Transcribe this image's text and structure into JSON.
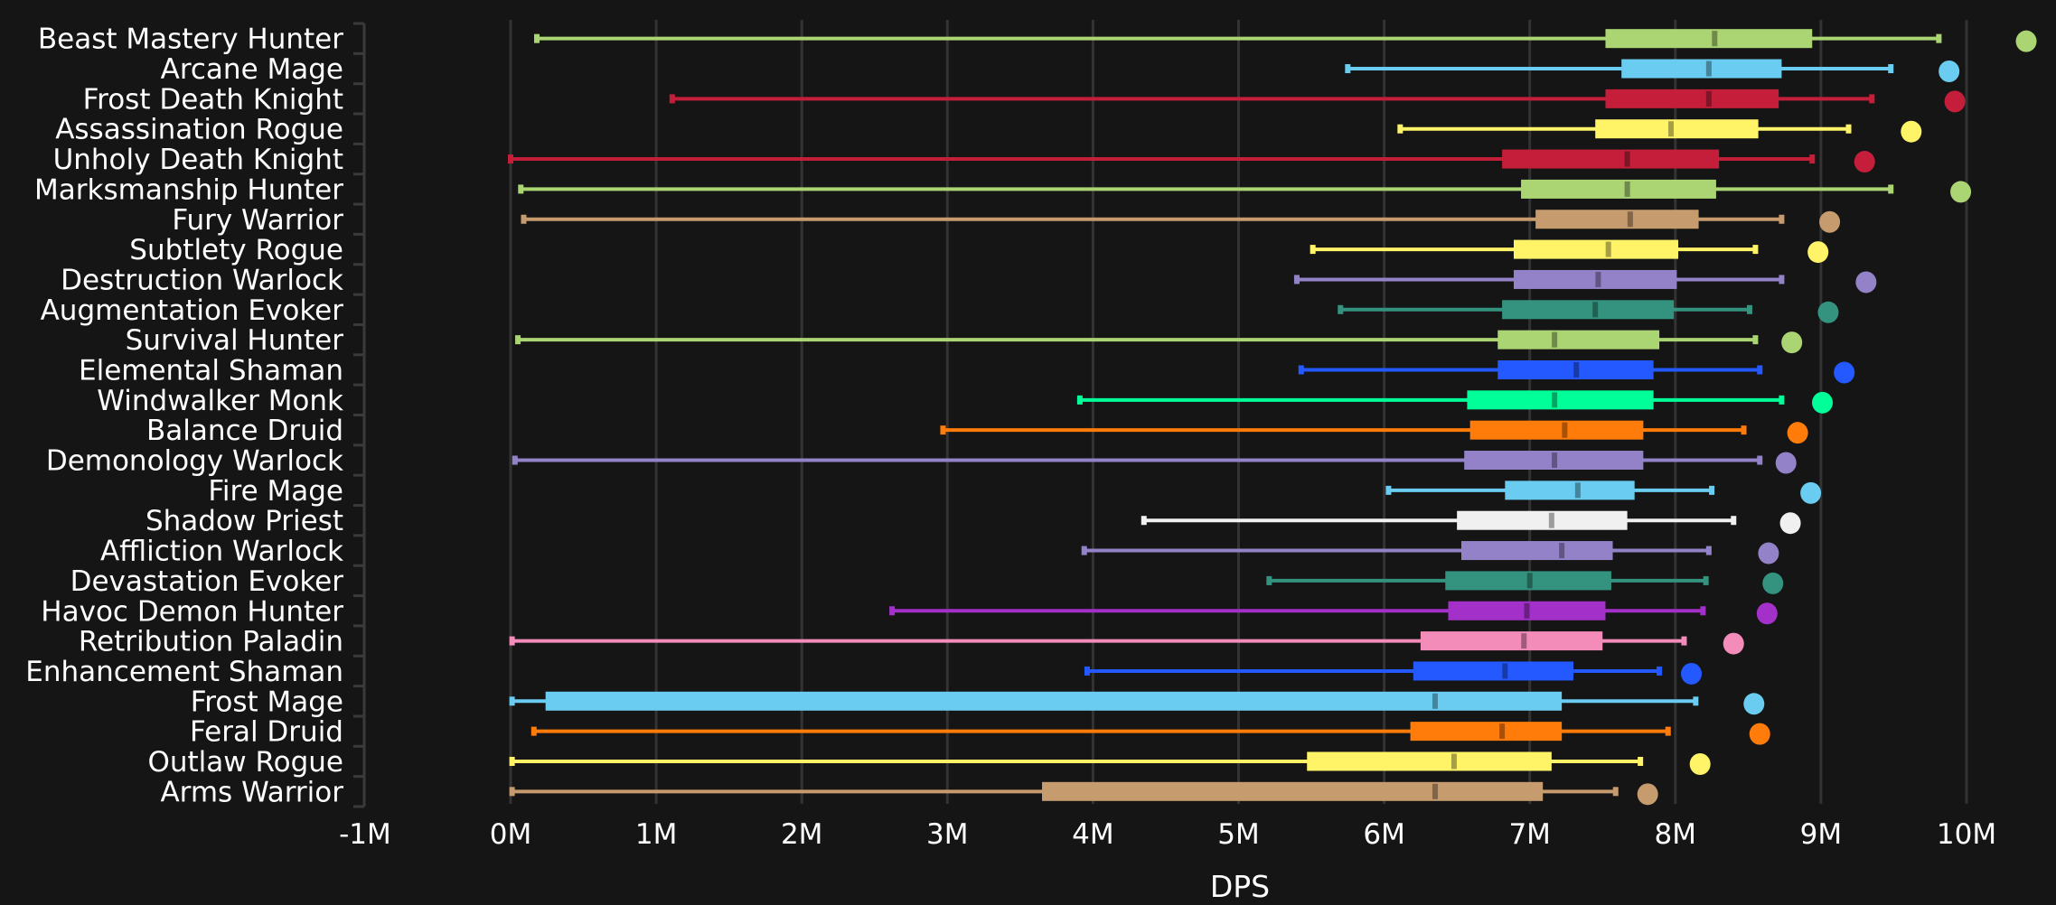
{
  "chart_data": {
    "type": "boxplot",
    "orientation": "horizontal",
    "title": "",
    "xlabel": "DPS",
    "ylabel": "",
    "xlim": [
      -1,
      10.5
    ],
    "x_unit": "M",
    "x_ticks": [
      -1,
      0,
      1,
      2,
      3,
      4,
      5,
      6,
      7,
      8,
      9,
      10
    ],
    "x_tick_labels": [
      "-1M",
      "0M",
      "1M",
      "2M",
      "3M",
      "4M",
      "5M",
      "6M",
      "7M",
      "8M",
      "9M",
      "10M"
    ],
    "grid": true,
    "legend": "none",
    "background": "#151515",
    "series": [
      {
        "name": "Beast Mastery Hunter",
        "color": "#ABD473",
        "min": 0.18,
        "q1": 7.52,
        "median": 8.27,
        "q3": 8.94,
        "max": 9.81,
        "outlier": 10.41
      },
      {
        "name": "Arcane Mage",
        "color": "#69CCF0",
        "min": 5.75,
        "q1": 7.63,
        "median": 8.23,
        "q3": 8.73,
        "max": 9.48,
        "outlier": 9.88
      },
      {
        "name": "Frost Death Knight",
        "color": "#C41E3A",
        "min": 1.11,
        "q1": 7.52,
        "median": 8.23,
        "q3": 8.71,
        "max": 9.35,
        "outlier": 9.92
      },
      {
        "name": "Assassination Rogue",
        "color": "#FFF468",
        "min": 6.11,
        "q1": 7.45,
        "median": 7.97,
        "q3": 8.57,
        "max": 9.19,
        "outlier": 9.62
      },
      {
        "name": "Unholy Death Knight",
        "color": "#C41E3A",
        "min": 0.0,
        "q1": 6.81,
        "median": 7.67,
        "q3": 8.3,
        "max": 8.94,
        "outlier": 9.3
      },
      {
        "name": "Marksmanship Hunter",
        "color": "#ABD473",
        "min": 0.07,
        "q1": 6.94,
        "median": 7.67,
        "q3": 8.28,
        "max": 9.48,
        "outlier": 9.96
      },
      {
        "name": "Fury Warrior",
        "color": "#C69B6D",
        "min": 0.09,
        "q1": 7.04,
        "median": 7.69,
        "q3": 8.16,
        "max": 8.73,
        "outlier": 9.06
      },
      {
        "name": "Subtlety Rogue",
        "color": "#FFF468",
        "min": 5.51,
        "q1": 6.89,
        "median": 7.54,
        "q3": 8.02,
        "max": 8.55,
        "outlier": 8.98
      },
      {
        "name": "Destruction Warlock",
        "color": "#9482C9",
        "min": 5.4,
        "q1": 6.89,
        "median": 7.47,
        "q3": 8.01,
        "max": 8.73,
        "outlier": 9.31
      },
      {
        "name": "Augmentation Evoker",
        "color": "#33937F",
        "min": 5.7,
        "q1": 6.81,
        "median": 7.45,
        "q3": 7.99,
        "max": 8.51,
        "outlier": 9.05
      },
      {
        "name": "Survival Hunter",
        "color": "#ABD473",
        "min": 0.05,
        "q1": 6.78,
        "median": 7.17,
        "q3": 7.89,
        "max": 8.55,
        "outlier": 8.8
      },
      {
        "name": "Elemental Shaman",
        "color": "#2459FF",
        "min": 5.43,
        "q1": 6.78,
        "median": 7.32,
        "q3": 7.85,
        "max": 8.58,
        "outlier": 9.16
      },
      {
        "name": "Windwalker Monk",
        "color": "#00FF98",
        "min": 3.91,
        "q1": 6.57,
        "median": 7.17,
        "q3": 7.85,
        "max": 8.73,
        "outlier": 9.01
      },
      {
        "name": "Balance Druid",
        "color": "#FF7C0A",
        "min": 2.97,
        "q1": 6.59,
        "median": 7.24,
        "q3": 7.78,
        "max": 8.47,
        "outlier": 8.84
      },
      {
        "name": "Demonology Warlock",
        "color": "#9482C9",
        "min": 0.03,
        "q1": 6.55,
        "median": 7.17,
        "q3": 7.78,
        "max": 8.58,
        "outlier": 8.76
      },
      {
        "name": "Fire Mage",
        "color": "#69CCF0",
        "min": 6.03,
        "q1": 6.83,
        "median": 7.33,
        "q3": 7.72,
        "max": 8.25,
        "outlier": 8.93
      },
      {
        "name": "Shadow Priest",
        "color": "#F0F0F0",
        "min": 4.35,
        "q1": 6.5,
        "median": 7.15,
        "q3": 7.67,
        "max": 8.4,
        "outlier": 8.79
      },
      {
        "name": "Affliction Warlock",
        "color": "#9482C9",
        "min": 3.94,
        "q1": 6.53,
        "median": 7.22,
        "q3": 7.57,
        "max": 8.23,
        "outlier": 8.64
      },
      {
        "name": "Devastation Evoker",
        "color": "#33937F",
        "min": 5.21,
        "q1": 6.42,
        "median": 7.0,
        "q3": 7.56,
        "max": 8.21,
        "outlier": 8.67
      },
      {
        "name": "Havoc Demon Hunter",
        "color": "#A330C9",
        "min": 2.62,
        "q1": 6.44,
        "median": 6.98,
        "q3": 7.52,
        "max": 8.19,
        "outlier": 8.63
      },
      {
        "name": "Retribution Paladin",
        "color": "#F48CBA",
        "min": 0.01,
        "q1": 6.25,
        "median": 6.96,
        "q3": 7.5,
        "max": 8.06,
        "outlier": 8.4
      },
      {
        "name": "Enhancement Shaman",
        "color": "#2459FF",
        "min": 3.96,
        "q1": 6.2,
        "median": 6.83,
        "q3": 7.3,
        "max": 7.89,
        "outlier": 8.11
      },
      {
        "name": "Frost Mage",
        "color": "#69CCF0",
        "min": 0.01,
        "q1": 0.24,
        "median": 6.35,
        "q3": 7.22,
        "max": 8.14,
        "outlier": 8.54
      },
      {
        "name": "Feral Druid",
        "color": "#FF7C0A",
        "min": 0.16,
        "q1": 6.18,
        "median": 6.81,
        "q3": 7.22,
        "max": 7.95,
        "outlier": 8.58
      },
      {
        "name": "Outlaw Rogue",
        "color": "#FFF468",
        "min": 0.01,
        "q1": 5.47,
        "median": 6.48,
        "q3": 7.15,
        "max": 7.76,
        "outlier": 8.17
      },
      {
        "name": "Arms Warrior",
        "color": "#C69B6D",
        "min": 0.01,
        "q1": 3.65,
        "median": 6.35,
        "q3": 7.09,
        "max": 7.59,
        "outlier": 7.81
      }
    ]
  }
}
